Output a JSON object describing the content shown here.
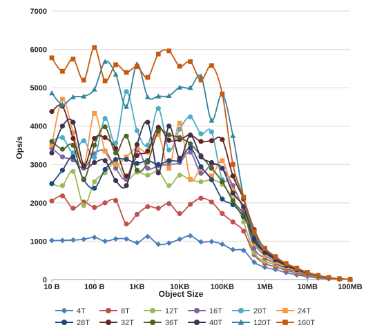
{
  "chart_data": {
    "type": "line",
    "xlabel": "Object Size",
    "ylabel": "Ops/s",
    "ylim": [
      0,
      7000
    ],
    "y_ticks": [
      0,
      1000,
      2000,
      3000,
      4000,
      5000,
      6000,
      7000
    ],
    "x_scale": "log",
    "x_ticks": [
      "10 B",
      "100 B",
      "1KB",
      "10KB",
      "100KB",
      "1MB",
      "10MB",
      "100MB"
    ],
    "grid": true,
    "legend_position": "bottom",
    "x_positions": [
      0,
      0.25,
      0.5,
      0.75,
      1,
      1.25,
      1.5,
      1.75,
      2,
      2.25,
      2.5,
      2.75,
      3,
      3.25,
      3.5,
      3.75,
      4,
      4.25,
      4.5,
      4.75,
      5,
      5.25,
      5.5,
      5.75,
      6,
      6.25,
      6.5,
      6.75,
      7
    ],
    "series": [
      {
        "name": "4T",
        "color": "#4a7ebb",
        "marker": "diamond",
        "values": [
          1020,
          1020,
          1030,
          1050,
          1100,
          1000,
          1060,
          1060,
          960,
          1120,
          920,
          950,
          1050,
          1140,
          980,
          990,
          920,
          780,
          760,
          450,
          320,
          260,
          180,
          120,
          80,
          40,
          20,
          10,
          5
        ]
      },
      {
        "name": "8T",
        "color": "#c0504d",
        "marker": "circle",
        "values": [
          2050,
          2180,
          1860,
          2020,
          1880,
          2000,
          2060,
          1450,
          1700,
          1900,
          1860,
          1980,
          1720,
          1960,
          2120,
          2020,
          1720,
          1500,
          1260,
          650,
          420,
          330,
          240,
          170,
          100,
          60,
          30,
          15,
          5
        ]
      },
      {
        "name": "12T",
        "color": "#9bbb59",
        "marker": "circle",
        "values": [
          2500,
          2450,
          2820,
          1930,
          2550,
          2780,
          3060,
          2600,
          2800,
          2720,
          2820,
          2450,
          2720,
          2600,
          2550,
          2600,
          2480,
          2100,
          1500,
          700,
          480,
          380,
          280,
          200,
          130,
          70,
          35,
          15,
          5
        ]
      },
      {
        "name": "16T",
        "color": "#8064a2",
        "marker": "circle",
        "values": [
          3430,
          3200,
          3120,
          2900,
          3280,
          3350,
          2900,
          2620,
          3370,
          2900,
          2970,
          3000,
          3050,
          3320,
          2770,
          3000,
          2900,
          2450,
          1800,
          820,
          560,
          420,
          300,
          210,
          140,
          75,
          35,
          15,
          5
        ]
      },
      {
        "name": "20T",
        "color": "#4bacc6",
        "marker": "circle",
        "values": [
          3600,
          3700,
          3300,
          3620,
          3180,
          4200,
          3560,
          4900,
          3880,
          3500,
          4460,
          3380,
          3920,
          4240,
          3800,
          3850,
          2600,
          2700,
          2100,
          1000,
          650,
          470,
          340,
          240,
          150,
          80,
          40,
          18,
          5
        ]
      },
      {
        "name": "24T",
        "color": "#f79646",
        "marker": "square",
        "values": [
          3500,
          4700,
          3830,
          3000,
          4330,
          3350,
          3000,
          3200,
          3430,
          3320,
          3780,
          2900,
          4080,
          2620,
          2900,
          2700,
          3100,
          2300,
          1900,
          950,
          620,
          460,
          330,
          230,
          150,
          80,
          40,
          18,
          5
        ]
      },
      {
        "name": "28T",
        "color": "#1f497d",
        "marker": "circle",
        "values": [
          2500,
          2850,
          3200,
          2600,
          2380,
          2870,
          3130,
          3130,
          3030,
          3100,
          3000,
          3100,
          3110,
          3430,
          2940,
          2600,
          2100,
          1950,
          1640,
          1100,
          720,
          520,
          370,
          260,
          160,
          90,
          45,
          20,
          5
        ]
      },
      {
        "name": "32T",
        "color": "#632523",
        "marker": "circle",
        "values": [
          4380,
          4520,
          3680,
          2950,
          3680,
          3700,
          3420,
          2700,
          3230,
          3350,
          3970,
          3630,
          3650,
          3770,
          3600,
          3620,
          3650,
          2700,
          2100,
          1300,
          780,
          560,
          400,
          280,
          180,
          100,
          50,
          20,
          5
        ]
      },
      {
        "name": "36T",
        "color": "#4f6228",
        "marker": "circle",
        "values": [
          3600,
          3400,
          3500,
          2620,
          3500,
          3980,
          3300,
          3740,
          2850,
          3060,
          3870,
          3770,
          3700,
          3540,
          3230,
          2900,
          2550,
          2050,
          1700,
          1000,
          700,
          510,
          360,
          250,
          160,
          90,
          45,
          20,
          5
        ]
      },
      {
        "name": "40T",
        "color": "#403152",
        "marker": "circle",
        "values": [
          3300,
          4000,
          4100,
          2960,
          3050,
          3100,
          2580,
          2450,
          3520,
          4100,
          2780,
          4000,
          3160,
          3760,
          3200,
          3050,
          2900,
          2250,
          1900,
          1050,
          720,
          520,
          370,
          260,
          170,
          95,
          45,
          20,
          5
        ]
      },
      {
        "name": "120T",
        "color": "#31849b",
        "marker": "triangle",
        "values": [
          4860,
          4560,
          4760,
          4780,
          4960,
          5680,
          5350,
          4510,
          5620,
          4760,
          4780,
          4790,
          5010,
          5000,
          5300,
          4150,
          4830,
          3750,
          2150,
          1200,
          800,
          580,
          410,
          290,
          180,
          100,
          50,
          20,
          5
        ]
      },
      {
        "name": "160T",
        "color": "#c55a11",
        "marker": "square",
        "values": [
          5780,
          5430,
          5750,
          5200,
          6050,
          5180,
          5600,
          5400,
          5550,
          5270,
          5880,
          5960,
          5560,
          5680,
          5200,
          5580,
          4840,
          3000,
          2150,
          1250,
          820,
          600,
          420,
          300,
          190,
          110,
          55,
          20,
          5
        ]
      }
    ]
  }
}
